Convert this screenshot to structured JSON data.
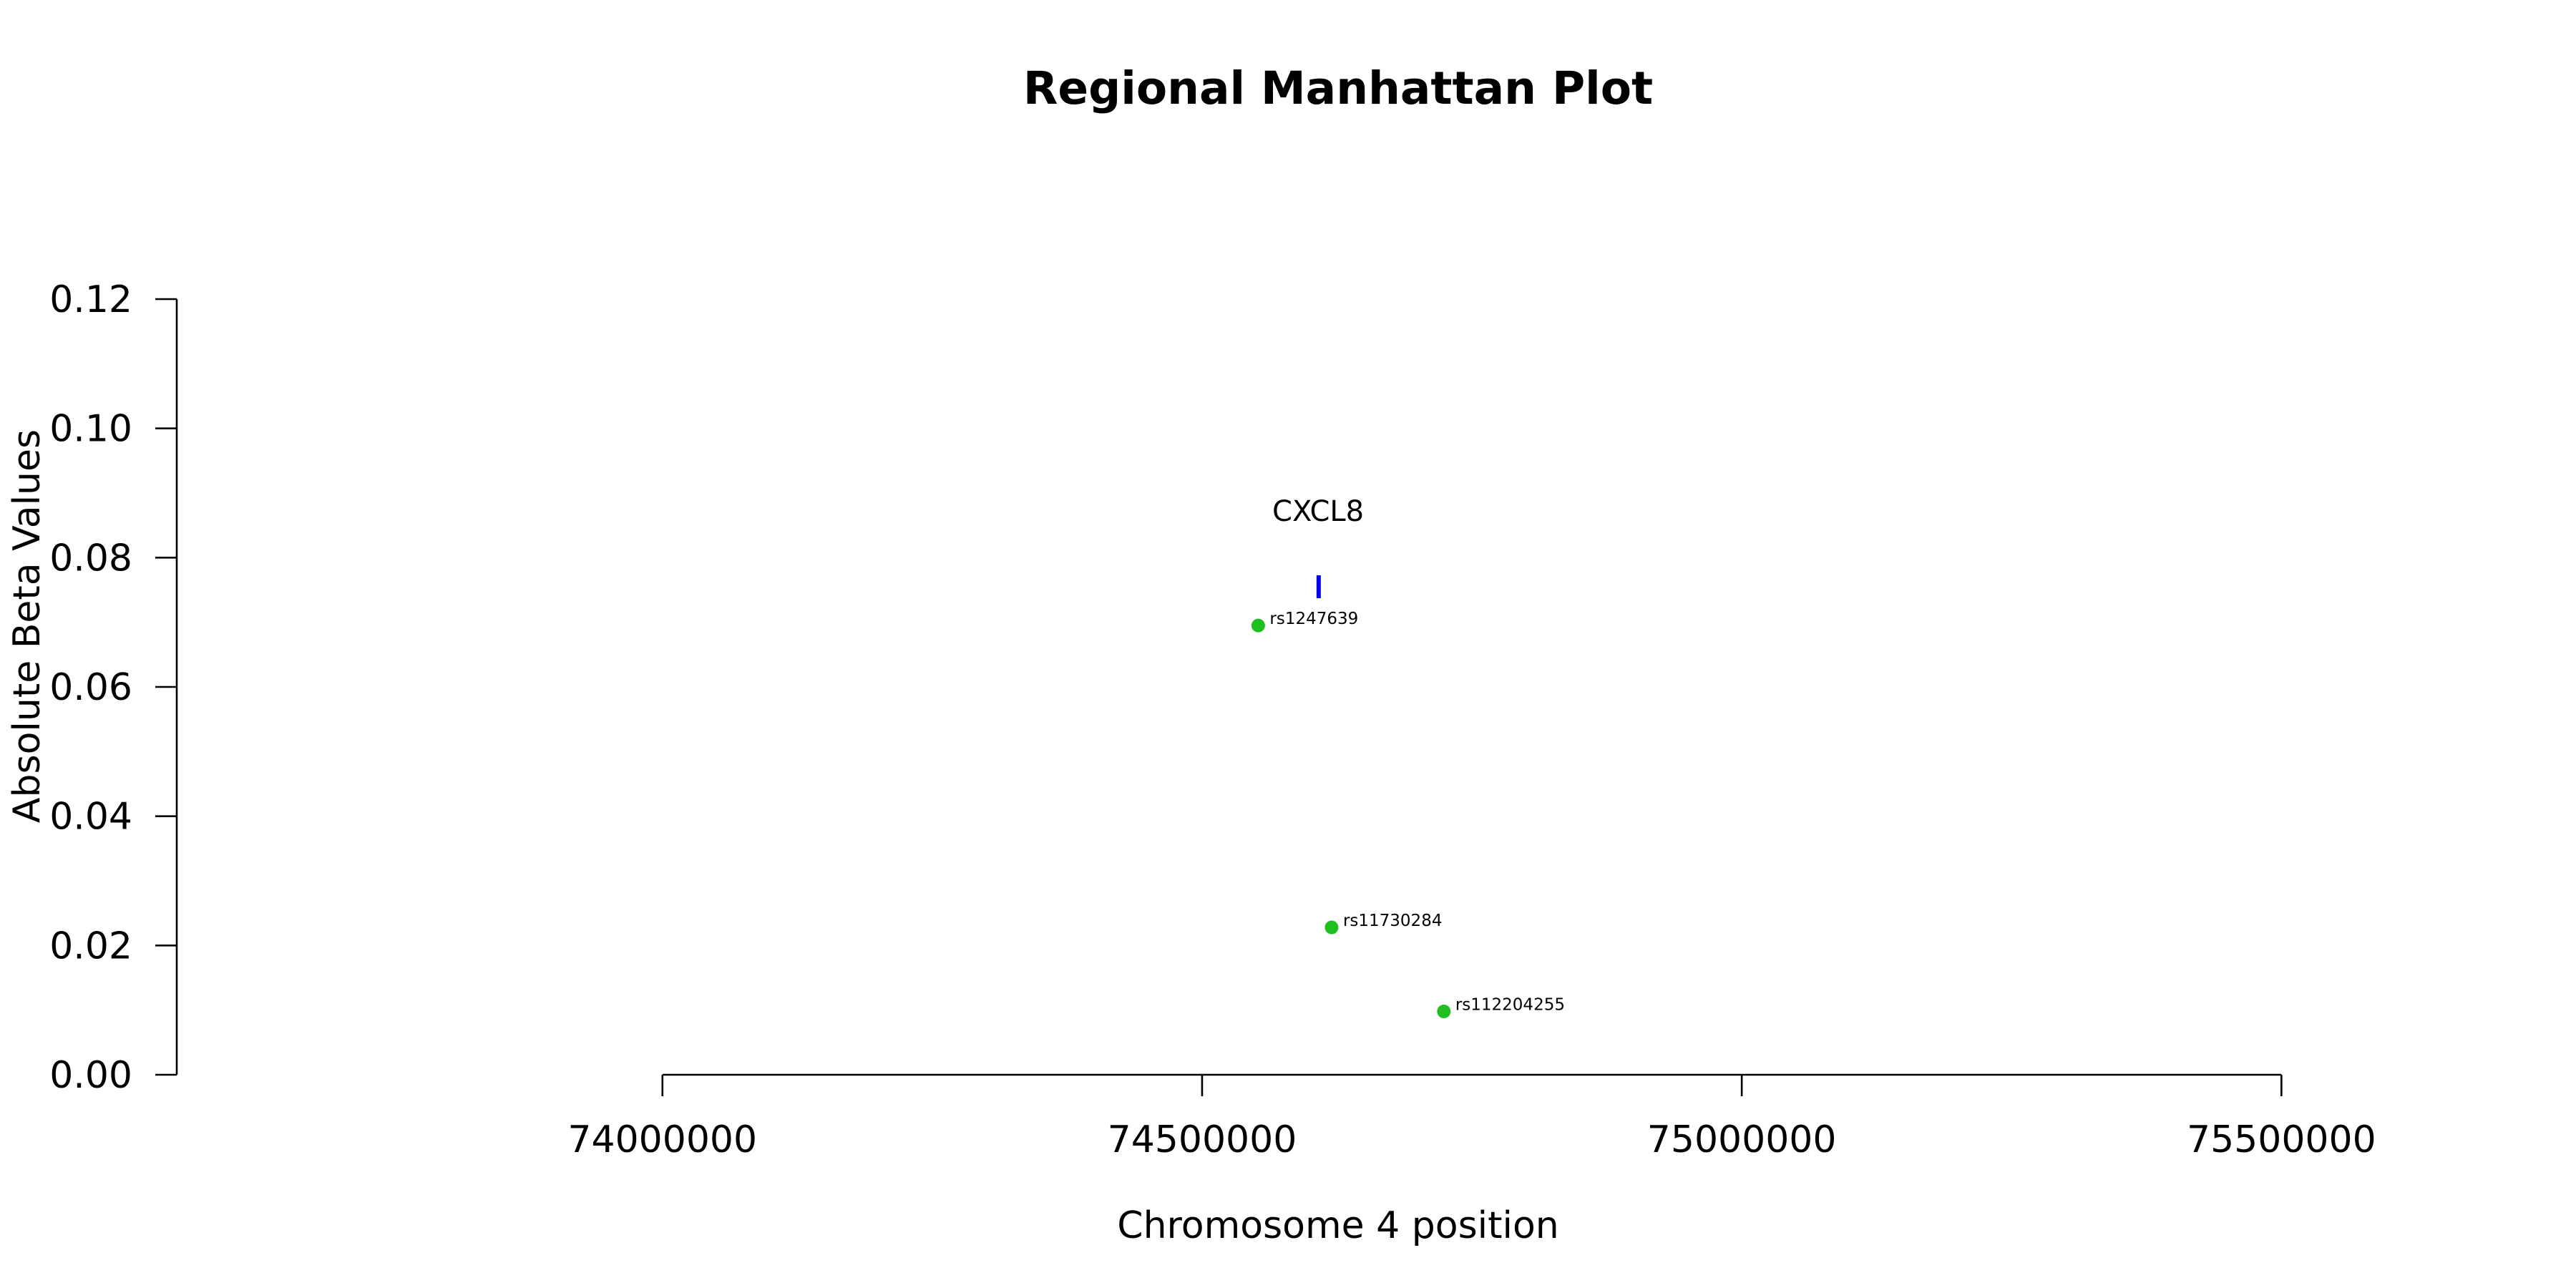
{
  "chart_data": {
    "type": "scatter",
    "title": "Regional Manhattan Plot",
    "xlabel": "Chromosome 4 position",
    "ylabel": "Absolute Beta Values",
    "xlim": [
      73550000,
      75700000
    ],
    "ylim": [
      0,
      0.12
    ],
    "x_ticks": [
      74000000,
      74500000,
      75000000,
      75500000
    ],
    "x_tick_labels": [
      "74000000",
      "74500000",
      "75000000",
      "75500000"
    ],
    "y_ticks": [
      0,
      0.02,
      0.04,
      0.06,
      0.08,
      0.1,
      0.12
    ],
    "y_tick_labels": [
      "0.00",
      "0.02",
      "0.04",
      "0.06",
      "0.08",
      "0.10",
      "0.12"
    ],
    "grid": false,
    "point_color": "#1fbf1f",
    "gene_color": "#0000ee",
    "points": [
      {
        "label": "rs1247639",
        "x": 74552000,
        "y": 0.0695
      },
      {
        "label": "rs11730284",
        "x": 74620000,
        "y": 0.0228
      },
      {
        "label": "rs112204255",
        "x": 74724000,
        "y": 0.0098
      }
    ],
    "genes": [
      {
        "name": "CXCL8",
        "start": 74606000,
        "end": 74609000,
        "y": 0.0755
      }
    ]
  }
}
